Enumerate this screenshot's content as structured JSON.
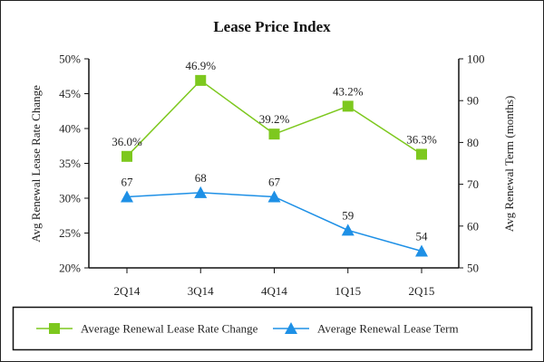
{
  "chart_data": {
    "type": "line",
    "title": "Lease Price Index",
    "categories": [
      "2Q14",
      "3Q14",
      "4Q14",
      "1Q15",
      "2Q15"
    ],
    "series": [
      {
        "name": "Average Renewal Lease Rate Change",
        "axis": "left",
        "marker": "square",
        "color": "#7DC81E",
        "values": [
          36.0,
          46.9,
          39.2,
          43.2,
          36.3
        ],
        "labels": [
          "36.0%",
          "46.9%",
          "39.2%",
          "43.2%",
          "36.3%"
        ]
      },
      {
        "name": "Average Renewal Lease Term",
        "axis": "right",
        "marker": "triangle",
        "color": "#1E90E6",
        "values": [
          67,
          68,
          67,
          59,
          54
        ],
        "labels": [
          "67",
          "68",
          "67",
          "59",
          "54"
        ]
      }
    ],
    "y_left": {
      "label": "Avg Renewal Lease Rate Change",
      "range": [
        20,
        50
      ],
      "ticks": [
        20,
        25,
        30,
        35,
        40,
        45,
        50
      ],
      "tick_labels": [
        "20%",
        "25%",
        "30%",
        "35%",
        "40%",
        "45%",
        "50%"
      ]
    },
    "y_right": {
      "label": "Avg Renewal Term (months)",
      "range": [
        50,
        100
      ],
      "ticks": [
        50,
        60,
        70,
        80,
        90,
        100
      ],
      "tick_labels": [
        "50",
        "60",
        "70",
        "80",
        "90",
        "100"
      ]
    },
    "xlabel": "",
    "grid": false,
    "legend": "bottom"
  }
}
